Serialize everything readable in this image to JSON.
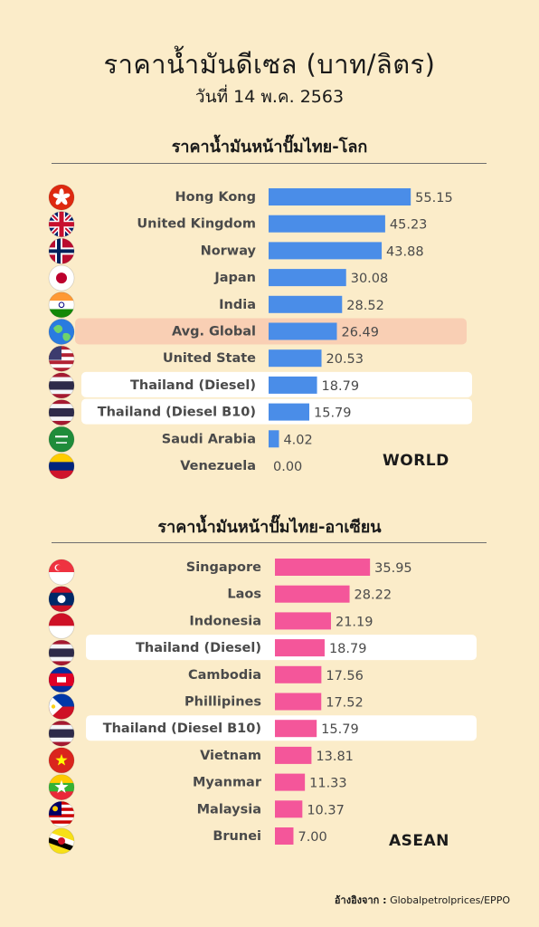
{
  "title": "ราคาน้ำมันดีเซล (บาท/ลิตร)",
  "subtitle": "วันที่ 14 พ.ค. 2563",
  "source_label": "อ้างอิงจาก :",
  "source_value": "Globalpetrolprices/EPPO",
  "colors": {
    "background": "#fbecc9",
    "world_bar": "#4a8de8",
    "asean_bar": "#f4569a",
    "highlight_global": "#f9cfb4",
    "highlight_thailand": "#ffffff"
  },
  "chart_data": [
    {
      "type": "bar",
      "orientation": "horizontal",
      "title": "ราคาน้ำมันหน้าปั๊มไทย-โลก",
      "tag": "WORLD",
      "categories": [
        "Hong Kong",
        "United Kingdom",
        "Norway",
        "Japan",
        "India",
        "Avg. Global",
        "United State",
        "Thailand (Diesel)",
        "Thailand (Diesel B10)",
        "Saudi Arabia",
        "Venezuela"
      ],
      "values": [
        55.15,
        45.23,
        43.88,
        30.08,
        28.52,
        26.49,
        20.53,
        18.79,
        15.79,
        4.02,
        0.0
      ],
      "value_labels": [
        "55.15",
        "45.23",
        "43.88",
        "30.08",
        "28.52",
        "26.49",
        "20.53",
        "18.79",
        "15.79",
        "4.02",
        "0.00"
      ],
      "icons": [
        "hong-kong-flag-icon",
        "united-kingdom-flag-icon",
        "norway-flag-icon",
        "japan-flag-icon",
        "india-flag-icon",
        "globe-icon",
        "united-states-flag-icon",
        "thailand-flag-icon",
        "thailand-flag-icon",
        "saudi-arabia-flag-icon",
        "venezuela-flag-icon"
      ],
      "highlight": [
        "",
        "",
        "",
        "",
        "",
        "global",
        "",
        "thailand",
        "thailand",
        "",
        ""
      ],
      "xlim": [
        0,
        60
      ]
    },
    {
      "type": "bar",
      "orientation": "horizontal",
      "title": "ราคาน้ำมันหน้าปั๊มไทย-อาเซียน",
      "tag": "ASEAN",
      "categories": [
        "Singapore",
        "Laos",
        "Indonesia",
        "Thailand (Diesel)",
        "Cambodia",
        "Phillipines",
        "Thailand (Diesel B10)",
        "Vietnam",
        "Myanmar",
        "Malaysia",
        "Brunei"
      ],
      "values": [
        35.95,
        28.22,
        21.19,
        18.79,
        17.56,
        17.52,
        15.79,
        13.81,
        11.33,
        10.37,
        7.0
      ],
      "value_labels": [
        "35.95",
        "28.22",
        "21.19",
        "18.79",
        "17.56",
        "17.52",
        "15.79",
        "13.81",
        "11.33",
        "10.37",
        "7.00"
      ],
      "icons": [
        "singapore-flag-icon",
        "laos-flag-icon",
        "indonesia-flag-icon",
        "thailand-flag-icon",
        "cambodia-flag-icon",
        "philippines-flag-icon",
        "thailand-flag-icon",
        "vietnam-flag-icon",
        "myanmar-flag-icon",
        "malaysia-flag-icon",
        "brunei-flag-icon"
      ],
      "highlight": [
        "",
        "",
        "",
        "thailand",
        "",
        "",
        "thailand",
        "",
        "",
        "",
        ""
      ],
      "xlim": [
        0,
        40
      ]
    }
  ]
}
